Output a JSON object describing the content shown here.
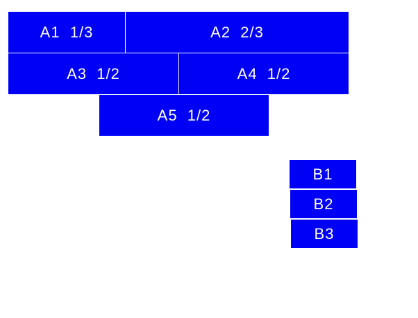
{
  "color": "#0000f5",
  "group_a": [
    {
      "label": "A1  1/3"
    },
    {
      "label": "A2  2/3"
    },
    {
      "label": "A3  1/2"
    },
    {
      "label": "A4  1/2"
    },
    {
      "label": "A5  1/2"
    }
  ],
  "group_b": [
    {
      "label": "B1"
    },
    {
      "label": "B2"
    },
    {
      "label": "B3"
    }
  ]
}
